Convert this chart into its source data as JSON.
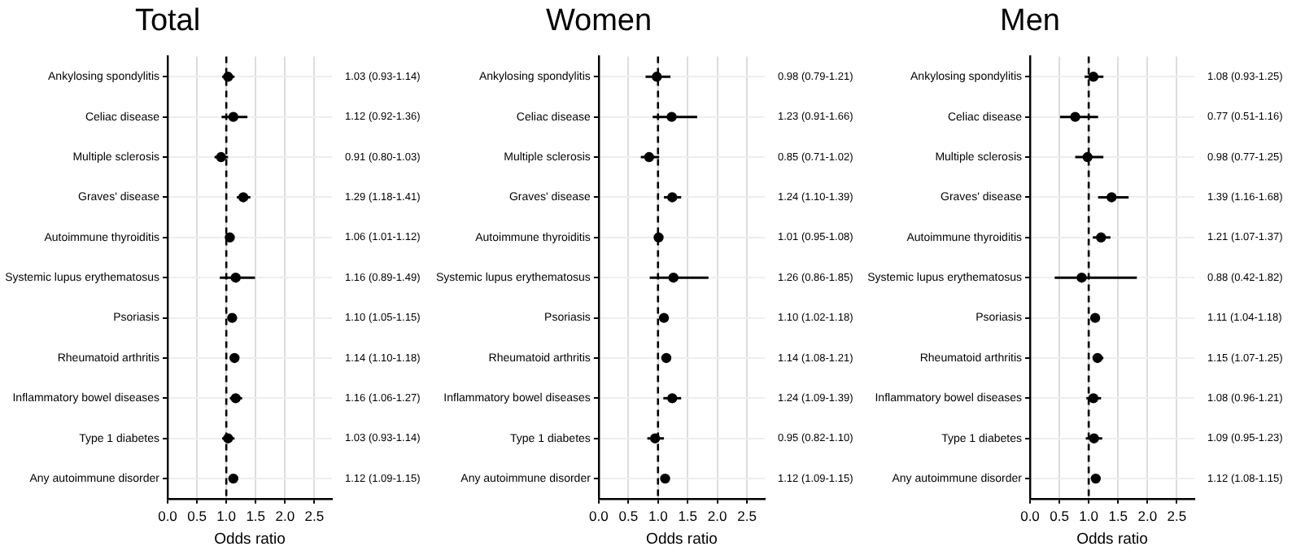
{
  "chart_data": [
    {
      "type": "scatter",
      "orientation": "horizontal",
      "title": "Total",
      "xlabel": "Odds ratio",
      "color": "#000000",
      "marker": "circle",
      "grid": true,
      "legend": false,
      "categories": [
        "Ankylosing spondylitis",
        "Celiac disease",
        "Multiple sclerosis",
        "Graves' disease",
        "Autoimmune thyroiditis",
        "Systemic lupus erythematosus",
        "Psoriasis",
        "Rheumatoid arthritis",
        "Inflammatory bowel diseases",
        "Type 1 diabetes",
        "Any autoimmune disorder"
      ],
      "values": [
        1.03,
        1.12,
        0.91,
        1.29,
        1.06,
        1.16,
        1.1,
        1.14,
        1.16,
        1.03,
        1.12
      ],
      "errors": [
        [
          0.93,
          1.14
        ],
        [
          0.92,
          1.36
        ],
        [
          0.8,
          1.03
        ],
        [
          1.18,
          1.41
        ],
        [
          1.01,
          1.12
        ],
        [
          0.89,
          1.49
        ],
        [
          1.05,
          1.15
        ],
        [
          1.1,
          1.18
        ],
        [
          1.06,
          1.27
        ],
        [
          0.93,
          1.14
        ],
        [
          1.09,
          1.15
        ]
      ],
      "value_labels": [
        "1.03 (0.93-1.14)",
        "1.12 (0.92-1.36)",
        "0.91 (0.80-1.03)",
        "1.29 (1.18-1.41)",
        "1.06 (1.01-1.12)",
        "1.16 (0.89-1.49)",
        "1.10 (1.05-1.15)",
        "1.14 (1.10-1.18)",
        "1.16 (1.06-1.27)",
        "1.03 (0.93-1.14)",
        "1.12 (1.09-1.15)"
      ],
      "xlim": [
        0,
        2.8
      ],
      "xticks": [
        {
          "value": 0,
          "label": "0.0"
        },
        0.5,
        {
          "value": 1,
          "label": "1.0"
        },
        1.5,
        {
          "value": 2,
          "label": "2.0"
        },
        2.5
      ],
      "ref_lines": [
        {
          "axis": "x",
          "value": 1,
          "label": null,
          "color": "#000000",
          "line_style": "dashed"
        }
      ]
    },
    {
      "type": "scatter",
      "orientation": "horizontal",
      "title": "Women",
      "xlabel": "Odds ratio",
      "color": "#000000",
      "marker": "circle",
      "grid": true,
      "legend": false,
      "categories": [
        "Ankylosing spondylitis",
        "Celiac disease",
        "Multiple sclerosis",
        "Graves' disease",
        "Autoimmune thyroiditis",
        "Systemic lupus erythematosus",
        "Psoriasis",
        "Rheumatoid arthritis",
        "Inflammatory bowel diseases",
        "Type 1 diabetes",
        "Any autoimmune disorder"
      ],
      "values": [
        0.98,
        1.23,
        0.85,
        1.24,
        1.01,
        1.26,
        1.1,
        1.14,
        1.24,
        0.95,
        1.12
      ],
      "errors": [
        [
          0.79,
          1.21
        ],
        [
          0.91,
          1.66
        ],
        [
          0.71,
          1.02
        ],
        [
          1.1,
          1.39
        ],
        [
          0.95,
          1.08
        ],
        [
          0.86,
          1.85
        ],
        [
          1.02,
          1.18
        ],
        [
          1.08,
          1.21
        ],
        [
          1.09,
          1.39
        ],
        [
          0.82,
          1.1
        ],
        [
          1.09,
          1.15
        ]
      ],
      "value_labels": [
        "0.98 (0.79-1.21)",
        "1.23 (0.91-1.66)",
        "0.85 (0.71-1.02)",
        "1.24 (1.10-1.39)",
        "1.01 (0.95-1.08)",
        "1.26 (0.86-1.85)",
        "1.10 (1.02-1.18)",
        "1.14 (1.08-1.21)",
        "1.24 (1.09-1.39)",
        "0.95 (0.82-1.10)",
        "1.12 (1.09-1.15)"
      ],
      "xlim": [
        0,
        2.8
      ],
      "xticks": [
        {
          "value": 0,
          "label": "0.0"
        },
        0.5,
        {
          "value": 1,
          "label": "1.0"
        },
        1.5,
        {
          "value": 2,
          "label": "2.0"
        },
        2.5
      ],
      "ref_lines": [
        {
          "axis": "x",
          "value": 1,
          "label": null,
          "color": "#000000",
          "line_style": "dashed"
        }
      ]
    },
    {
      "type": "scatter",
      "orientation": "horizontal",
      "title": "Men",
      "xlabel": "Odds ratio",
      "color": "#000000",
      "marker": "circle",
      "grid": true,
      "legend": false,
      "categories": [
        "Ankylosing spondylitis",
        "Celiac disease",
        "Multiple sclerosis",
        "Graves' disease",
        "Autoimmune thyroiditis",
        "Systemic lupus erythematosus",
        "Psoriasis",
        "Rheumatoid arthritis",
        "Inflammatory bowel diseases",
        "Type 1 diabetes",
        "Any autoimmune disorder"
      ],
      "values": [
        1.08,
        0.77,
        0.98,
        1.39,
        1.21,
        0.88,
        1.11,
        1.15,
        1.08,
        1.09,
        1.12
      ],
      "errors": [
        [
          0.93,
          1.25
        ],
        [
          0.51,
          1.16
        ],
        [
          0.77,
          1.25
        ],
        [
          1.16,
          1.68
        ],
        [
          1.07,
          1.37
        ],
        [
          0.42,
          1.82
        ],
        [
          1.04,
          1.18
        ],
        [
          1.07,
          1.25
        ],
        [
          0.96,
          1.21
        ],
        [
          0.95,
          1.23
        ],
        [
          1.08,
          1.15
        ]
      ],
      "value_labels": [
        "1.08 (0.93-1.25)",
        "0.77 (0.51-1.16)",
        "0.98 (0.77-1.25)",
        "1.39 (1.16-1.68)",
        "1.21 (1.07-1.37)",
        "0.88 (0.42-1.82)",
        "1.11 (1.04-1.18)",
        "1.15 (1.07-1.25)",
        "1.08 (0.96-1.21)",
        "1.09 (0.95-1.23)",
        "1.12 (1.08-1.15)"
      ],
      "xlim": [
        0,
        2.8
      ],
      "xticks": [
        {
          "value": 0,
          "label": "0.0"
        },
        0.5,
        {
          "value": 1,
          "label": "1.0"
        },
        1.5,
        {
          "value": 2,
          "label": "2.0"
        },
        2.5
      ],
      "ref_lines": [
        {
          "axis": "x",
          "value": 1,
          "label": null,
          "color": "#000000",
          "line_style": "dashed"
        }
      ]
    }
  ]
}
